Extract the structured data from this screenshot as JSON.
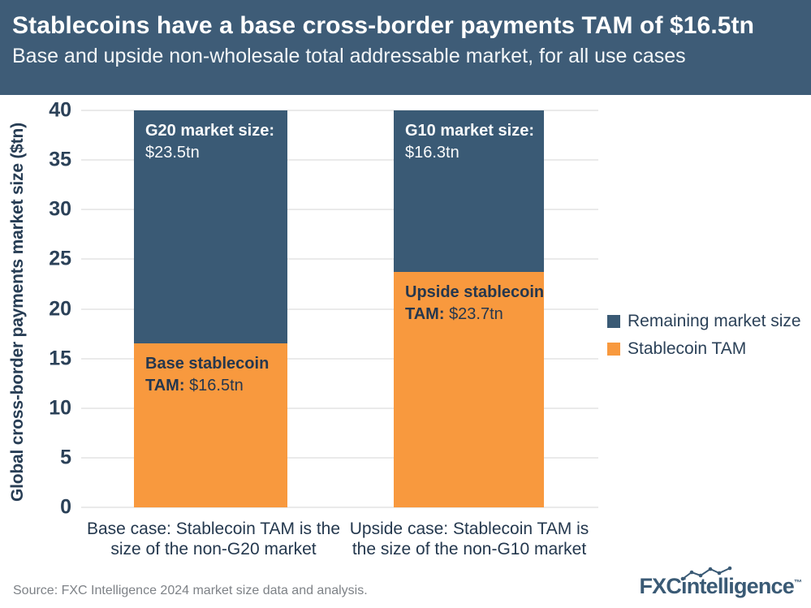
{
  "header": {
    "title": "Stablecoins have a base cross-border payments TAM of $16.5tn",
    "subtitle": "Base and upside non-wholesale total addressable market, for all use cases",
    "bg_color": "#3E5C77",
    "text_color": "#FFFFFF"
  },
  "chart_data": {
    "type": "bar",
    "stacked": true,
    "title": "Stablecoins have a base cross-border payments TAM of $16.5tn",
    "subtitle": "Base and upside non-wholesale total addressable market, for all use cases",
    "xlabel": "",
    "ylabel": "Global cross-border payments market size ($tn)",
    "ylim": [
      0,
      40
    ],
    "yticks": [
      "40",
      "35",
      "30",
      "25",
      "20",
      "15",
      "10",
      "5",
      "0"
    ],
    "grid": "horizontal",
    "gridline_color": "#EAEAEA",
    "legend_position": "right",
    "categories": [
      {
        "line1": "Base case: Stablecoin TAM is the",
        "line2": "size of the non-G20 market"
      },
      {
        "line1": "Upside case: Stablecoin TAM is",
        "line2": "the size of the non-G10 market"
      }
    ],
    "series": [
      {
        "name": "Stablecoin TAM",
        "color": "#F8993E",
        "values": [
          16.5,
          23.7
        ]
      },
      {
        "name": "Remaining market size",
        "color": "#3A5A75",
        "values": [
          23.5,
          16.3
        ]
      }
    ],
    "annotations": {
      "bar1_remaining": {
        "label": "G20 market size:",
        "value": "$23.5tn"
      },
      "bar1_tam": {
        "label": "Base stablecoin",
        "label2": "TAM:",
        "value": "$16.5tn"
      },
      "bar2_remaining": {
        "label": "G10 market size:",
        "value": "$16.3tn"
      },
      "bar2_tam": {
        "label": "Upside stablecoin",
        "label2": "TAM:",
        "value": "$23.7tn"
      }
    },
    "text_color_navy": "#273D54",
    "text_color_on_dark": "#FFFFFF"
  },
  "footer": {
    "source": "Source: FXC Intelligence 2024 market size data and analysis.",
    "logo": {
      "bold": "FXC",
      "rest": "intelligence",
      "tm": "™"
    }
  }
}
